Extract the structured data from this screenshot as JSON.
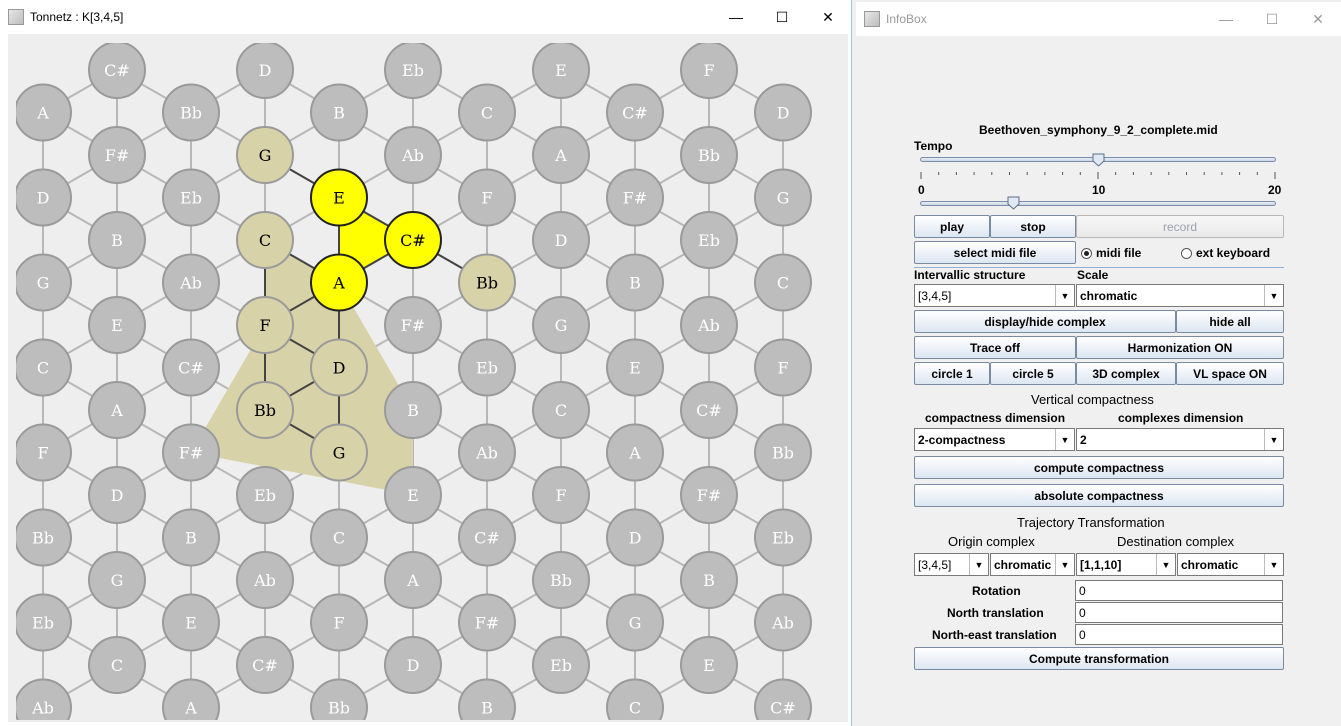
{
  "tonnetz_window": {
    "title": "Tonnetz : K[3,4,5]",
    "controls": {
      "minimize": "—",
      "maximize": "☐",
      "close": "✕"
    },
    "grid": {
      "rows": [
        [
          "C#",
          "D",
          "Eb",
          "E",
          "F"
        ],
        [
          "A",
          "Bb",
          "B",
          "C",
          "C#",
          "D"
        ],
        [
          "F#",
          "G",
          "Ab",
          "A",
          "Bb"
        ],
        [
          "D",
          "Eb",
          "E",
          "F",
          "F#",
          "G"
        ],
        [
          "B",
          "C",
          "C#",
          "D",
          "Eb"
        ],
        [
          "G",
          "Ab",
          "A",
          "Bb",
          "B",
          "C"
        ],
        [
          "E",
          "F",
          "F#",
          "G",
          "Ab"
        ],
        [
          "C",
          "C#",
          "D",
          "Eb",
          "E",
          "F"
        ],
        [
          "A",
          "Bb",
          "B",
          "C",
          "C#"
        ],
        [
          "F",
          "F#",
          "G",
          "Ab",
          "A",
          "Bb"
        ],
        [
          "D",
          "Eb",
          "E",
          "F",
          "F#"
        ],
        [
          "Bb",
          "B",
          "C",
          "C#",
          "D",
          "Eb"
        ],
        [
          "G",
          "Ab",
          "A",
          "Bb",
          "B"
        ],
        [
          "Eb",
          "E",
          "F",
          "F#",
          "G",
          "Ab"
        ],
        [
          "C",
          "C#",
          "D",
          "Eb",
          "E"
        ],
        [
          "Ab",
          "A",
          "Bb",
          "B",
          "C",
          "C#"
        ]
      ],
      "highlighted_yellow": [
        "E",
        "C#",
        "A"
      ],
      "highlighted_tan": [
        "G",
        "C",
        "F",
        "D",
        "Bb",
        "G",
        "Bb"
      ]
    }
  },
  "infobox_window": {
    "title": "InfoBox",
    "controls": {
      "minimize": "—",
      "maximize": "☐",
      "close": "✕"
    },
    "filename": "Beethoven_symphony_9_2_complete.mid",
    "tempo": {
      "label": "Tempo",
      "min": "0",
      "mid": "10",
      "max": "20",
      "value": 10,
      "second_slider_fraction": 0.27
    },
    "buttons": {
      "play": "play",
      "stop": "stop",
      "record": "record",
      "select_midi": "select midi file",
      "display_hide": "display/hide complex",
      "hide_all": "hide all",
      "trace": "Trace off",
      "harmonization": "Harmonization ON",
      "circle1": "circle 1",
      "circle5": "circle 5",
      "complex3d": "3D complex",
      "vlspace": "VL space ON",
      "compute_compactness": "compute compactness",
      "absolute_compactness": "absolute compactness",
      "compute_transformation": "Compute transformation"
    },
    "radio": {
      "midi_file": "midi file",
      "ext_keyboard": "ext keyboard",
      "selected": "midi file"
    },
    "labels": {
      "intervallic_structure": "Intervallic structure",
      "scale": "Scale",
      "vertical_compactness": "Vertical compactness",
      "compactness_dimension": "compactness dimension",
      "complexes_dimension": "complexes dimension",
      "trajectory_transformation": "Trajectory Transformation",
      "origin_complex": "Origin complex",
      "destination_complex": "Destination complex",
      "rotation": "Rotation",
      "north_translation": "North translation",
      "northeast_translation": "North-east translation"
    },
    "combos": {
      "intervallic": "[3,4,5]",
      "scale": "chromatic",
      "compactness_dim": "2-compactness",
      "complexes_dim": "2",
      "origin_struct": "[3,4,5]",
      "origin_scale": "chromatic",
      "dest_struct": "[1,1,10]",
      "dest_scale": "chromatic"
    },
    "fields": {
      "rotation": "0",
      "north": "0",
      "northeast": "0"
    },
    "arrow": "▼"
  }
}
